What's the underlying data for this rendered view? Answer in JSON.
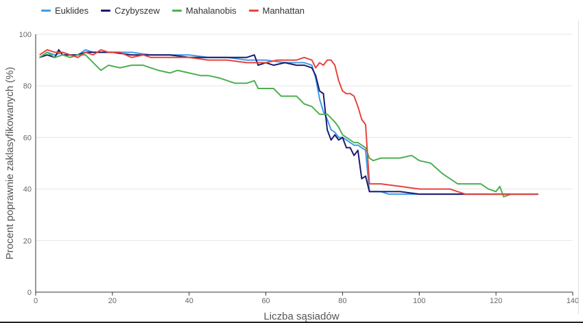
{
  "chart_data": {
    "type": "line",
    "title": "",
    "xlabel": "Liczba sąsiadów",
    "ylabel": "Procent poprawnie zaklasyfikowanych (%)",
    "xlim": [
      0,
      140
    ],
    "ylim": [
      0,
      100
    ],
    "x_ticks": [
      "0",
      "20",
      "40",
      "60",
      "80",
      "100",
      "120",
      "140"
    ],
    "y_ticks": [
      "0",
      "20",
      "40",
      "60",
      "80",
      "100"
    ],
    "grid": "horizontal",
    "legend_position": "top-left",
    "series": [
      {
        "name": "Euklides",
        "color": "#3d9be9",
        "points": [
          [
            1,
            91
          ],
          [
            3,
            93
          ],
          [
            5,
            92
          ],
          [
            7,
            93
          ],
          [
            9,
            92
          ],
          [
            11,
            92
          ],
          [
            13,
            94
          ],
          [
            15,
            93
          ],
          [
            20,
            93
          ],
          [
            25,
            93
          ],
          [
            30,
            92
          ],
          [
            35,
            92
          ],
          [
            40,
            92
          ],
          [
            45,
            91
          ],
          [
            50,
            91
          ],
          [
            55,
            90
          ],
          [
            60,
            90
          ],
          [
            65,
            89
          ],
          [
            70,
            89
          ],
          [
            72,
            88
          ],
          [
            73,
            83
          ],
          [
            74,
            75
          ],
          [
            75,
            70
          ],
          [
            76,
            67
          ],
          [
            77,
            63
          ],
          [
            78,
            62
          ],
          [
            79,
            60
          ],
          [
            80,
            60
          ],
          [
            81,
            59
          ],
          [
            82,
            58
          ],
          [
            83,
            57
          ],
          [
            84,
            57
          ],
          [
            85,
            56
          ],
          [
            86,
            55
          ],
          [
            87,
            39
          ],
          [
            90,
            39
          ],
          [
            92,
            38
          ],
          [
            95,
            38
          ],
          [
            100,
            38
          ],
          [
            105,
            38
          ],
          [
            110,
            38
          ],
          [
            120,
            38
          ],
          [
            131,
            38
          ]
        ]
      },
      {
        "name": "Czybyszew",
        "color": "#1a1a6e",
        "points": [
          [
            1,
            91
          ],
          [
            3,
            92
          ],
          [
            5,
            91
          ],
          [
            6,
            94
          ],
          [
            7,
            92
          ],
          [
            9,
            92
          ],
          [
            11,
            92
          ],
          [
            13,
            93
          ],
          [
            15,
            93
          ],
          [
            20,
            93
          ],
          [
            25,
            92
          ],
          [
            30,
            92
          ],
          [
            35,
            92
          ],
          [
            40,
            91
          ],
          [
            45,
            91
          ],
          [
            50,
            91
          ],
          [
            55,
            91
          ],
          [
            57,
            92
          ],
          [
            58,
            88
          ],
          [
            60,
            89
          ],
          [
            62,
            88
          ],
          [
            65,
            89
          ],
          [
            68,
            88
          ],
          [
            70,
            88
          ],
          [
            72,
            87
          ],
          [
            73,
            84
          ],
          [
            74,
            78
          ],
          [
            75,
            77
          ],
          [
            76,
            63
          ],
          [
            77,
            59
          ],
          [
            78,
            61
          ],
          [
            79,
            59
          ],
          [
            80,
            60
          ],
          [
            81,
            56
          ],
          [
            82,
            56
          ],
          [
            83,
            53
          ],
          [
            84,
            55
          ],
          [
            85,
            44
          ],
          [
            86,
            45
          ],
          [
            87,
            39
          ],
          [
            90,
            39
          ],
          [
            95,
            39
          ],
          [
            100,
            38
          ],
          [
            110,
            38
          ],
          [
            120,
            38
          ],
          [
            131,
            38
          ]
        ]
      },
      {
        "name": "Mahalanobis",
        "color": "#4caf50",
        "points": [
          [
            1,
            91
          ],
          [
            3,
            93
          ],
          [
            5,
            91
          ],
          [
            7,
            92
          ],
          [
            9,
            91
          ],
          [
            11,
            92
          ],
          [
            13,
            92
          ],
          [
            15,
            89
          ],
          [
            17,
            86
          ],
          [
            19,
            88
          ],
          [
            22,
            87
          ],
          [
            25,
            88
          ],
          [
            28,
            88
          ],
          [
            30,
            87
          ],
          [
            32,
            86
          ],
          [
            35,
            85
          ],
          [
            37,
            86
          ],
          [
            40,
            85
          ],
          [
            43,
            84
          ],
          [
            45,
            84
          ],
          [
            48,
            83
          ],
          [
            50,
            82
          ],
          [
            52,
            81
          ],
          [
            55,
            81
          ],
          [
            57,
            82
          ],
          [
            58,
            79
          ],
          [
            62,
            79
          ],
          [
            64,
            76
          ],
          [
            68,
            76
          ],
          [
            70,
            73
          ],
          [
            72,
            72
          ],
          [
            74,
            69
          ],
          [
            76,
            69
          ],
          [
            78,
            66
          ],
          [
            79,
            64
          ],
          [
            80,
            61
          ],
          [
            81,
            60
          ],
          [
            82,
            59
          ],
          [
            83,
            58
          ],
          [
            84,
            58
          ],
          [
            85,
            57
          ],
          [
            86,
            56
          ],
          [
            87,
            52
          ],
          [
            88,
            51
          ],
          [
            90,
            52
          ],
          [
            95,
            52
          ],
          [
            98,
            53
          ],
          [
            100,
            51
          ],
          [
            103,
            50
          ],
          [
            106,
            46
          ],
          [
            108,
            44
          ],
          [
            110,
            42
          ],
          [
            113,
            42
          ],
          [
            116,
            42
          ],
          [
            118,
            40
          ],
          [
            120,
            39
          ],
          [
            121,
            41
          ],
          [
            122,
            37
          ],
          [
            124,
            38
          ],
          [
            126,
            38
          ],
          [
            131,
            38
          ]
        ]
      },
      {
        "name": "Manhattan",
        "color": "#e8423c",
        "points": [
          [
            1,
            92
          ],
          [
            3,
            94
          ],
          [
            5,
            93
          ],
          [
            7,
            93
          ],
          [
            9,
            92
          ],
          [
            11,
            91
          ],
          [
            13,
            93
          ],
          [
            15,
            92
          ],
          [
            17,
            94
          ],
          [
            19,
            93
          ],
          [
            22,
            93
          ],
          [
            25,
            91
          ],
          [
            28,
            92
          ],
          [
            30,
            91
          ],
          [
            35,
            91
          ],
          [
            40,
            91
          ],
          [
            45,
            90
          ],
          [
            50,
            90
          ],
          [
            55,
            89
          ],
          [
            60,
            89
          ],
          [
            63,
            90
          ],
          [
            65,
            90
          ],
          [
            68,
            90
          ],
          [
            70,
            91
          ],
          [
            72,
            90
          ],
          [
            73,
            87
          ],
          [
            74,
            89
          ],
          [
            75,
            88
          ],
          [
            76,
            90
          ],
          [
            77,
            90
          ],
          [
            78,
            88
          ],
          [
            79,
            82
          ],
          [
            80,
            78
          ],
          [
            81,
            77
          ],
          [
            82,
            77
          ],
          [
            83,
            76
          ],
          [
            84,
            72
          ],
          [
            85,
            67
          ],
          [
            86,
            65
          ],
          [
            87,
            42
          ],
          [
            88,
            42
          ],
          [
            90,
            42
          ],
          [
            95,
            41
          ],
          [
            100,
            40
          ],
          [
            105,
            40
          ],
          [
            108,
            40
          ],
          [
            110,
            39
          ],
          [
            112,
            38
          ],
          [
            120,
            38
          ],
          [
            131,
            38
          ]
        ]
      }
    ]
  }
}
